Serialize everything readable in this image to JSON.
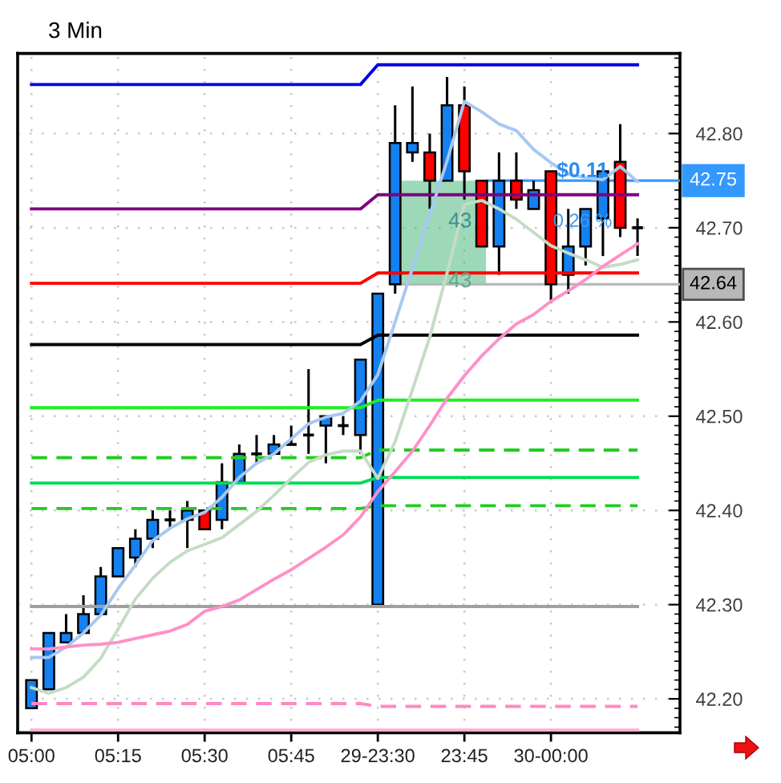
{
  "chart_data": {
    "type": "candlestick",
    "title": "3 Min",
    "categories": [
      "05:00",
      null,
      null,
      null,
      null,
      "05:15",
      null,
      null,
      null,
      null,
      "05:30",
      null,
      null,
      null,
      null,
      "05:45",
      null,
      null,
      null,
      null,
      "29-23:30",
      null,
      null,
      null,
      null,
      "23:45",
      null,
      null,
      null,
      null,
      "30-00:00",
      null,
      null,
      null,
      null,
      null
    ],
    "ohlc": [
      [
        42.19,
        42.22,
        42.19,
        42.22
      ],
      [
        42.21,
        42.27,
        42.21,
        42.27
      ],
      [
        42.26,
        42.29,
        42.26,
        42.27
      ],
      [
        42.27,
        42.31,
        42.27,
        42.29
      ],
      [
        42.29,
        42.34,
        42.29,
        42.33
      ],
      [
        42.33,
        42.36,
        42.33,
        42.36
      ],
      [
        42.35,
        42.38,
        42.34,
        42.37
      ],
      [
        42.37,
        42.4,
        42.36,
        42.39
      ],
      [
        42.39,
        42.4,
        42.38,
        42.39
      ],
      [
        42.39,
        42.41,
        42.36,
        42.4
      ],
      [
        42.4,
        42.4,
        42.38,
        42.38
      ],
      [
        42.39,
        42.45,
        42.38,
        42.43
      ],
      [
        42.43,
        42.47,
        42.43,
        42.46
      ],
      [
        42.46,
        42.48,
        42.45,
        42.46
      ],
      [
        42.46,
        42.48,
        42.46,
        42.47
      ],
      [
        42.47,
        42.49,
        42.47,
        42.47
      ],
      [
        42.48,
        42.55,
        42.46,
        42.48
      ],
      [
        42.49,
        42.5,
        42.45,
        42.5
      ],
      [
        42.49,
        42.5,
        42.48,
        42.49
      ],
      [
        42.48,
        42.56,
        42.46,
        42.56
      ],
      [
        42.3,
        42.63,
        42.3,
        42.63
      ],
      [
        42.64,
        42.83,
        42.63,
        42.79
      ],
      [
        42.78,
        42.85,
        42.77,
        42.79
      ],
      [
        42.78,
        42.8,
        42.72,
        42.75
      ],
      [
        42.75,
        42.86,
        42.75,
        42.83
      ],
      [
        42.83,
        42.85,
        42.73,
        42.76
      ],
      [
        42.75,
        42.75,
        42.68,
        42.68
      ],
      [
        42.68,
        42.78,
        42.65,
        42.75
      ],
      [
        42.75,
        42.78,
        42.72,
        42.73
      ],
      [
        42.72,
        42.75,
        42.72,
        42.74
      ],
      [
        42.76,
        42.76,
        42.62,
        42.64
      ],
      [
        42.65,
        42.72,
        42.63,
        42.68
      ],
      [
        42.68,
        42.72,
        42.66,
        42.72
      ],
      [
        42.71,
        42.76,
        42.67,
        42.76
      ],
      [
        42.77,
        42.81,
        42.69,
        42.7
      ],
      [
        42.7,
        42.71,
        42.67,
        42.7
      ]
    ],
    "colors": [
      "#1580f0",
      "#1580f0",
      "#1580f0",
      "#1580f0",
      "#1580f0",
      "#1580f0",
      "#1580f0",
      "#1580f0",
      "#000000",
      "#1580f0",
      "#ff0000",
      "#1580f0",
      "#1580f0",
      "#000000",
      "#1580f0",
      "#000000",
      "#000000",
      "#1580f0",
      "#000000",
      "#1580f0",
      "#1580f0",
      "#1580f0",
      "#1580f0",
      "#ff0000",
      "#1580f0",
      "#ff0000",
      "#ff0000",
      "#1580f0",
      "#ff0000",
      "#1580f0",
      "#ff0000",
      "#1580f0",
      "#1580f0",
      "#1580f0",
      "#ff0000",
      "#000000"
    ],
    "series": [
      {
        "type": "line",
        "color": "#0000e6",
        "values": [
          42.852,
          42.852,
          42.852,
          42.852,
          42.852,
          42.852,
          42.852,
          42.852,
          42.852,
          42.852,
          42.852,
          42.852,
          42.852,
          42.852,
          42.852,
          42.852,
          42.852,
          42.852,
          42.852,
          42.852,
          42.873,
          42.873,
          42.873,
          42.873,
          42.873,
          42.873,
          42.873,
          42.873,
          42.873,
          42.873,
          42.873,
          42.873,
          42.873,
          42.873,
          42.873,
          42.873
        ]
      },
      {
        "type": "line",
        "color": "#800080",
        "values": [
          42.72,
          42.72,
          42.72,
          42.72,
          42.72,
          42.72,
          42.72,
          42.72,
          42.72,
          42.72,
          42.72,
          42.72,
          42.72,
          42.72,
          42.72,
          42.72,
          42.72,
          42.72,
          42.72,
          42.72,
          42.735,
          42.735,
          42.735,
          42.735,
          42.735,
          42.735,
          42.735,
          42.735,
          42.735,
          42.735,
          42.735,
          42.735,
          42.735,
          42.735,
          42.735,
          42.735
        ]
      },
      {
        "type": "line",
        "color": "#ff0000",
        "values": [
          42.641,
          42.641,
          42.641,
          42.641,
          42.641,
          42.641,
          42.641,
          42.641,
          42.641,
          42.641,
          42.641,
          42.641,
          42.641,
          42.641,
          42.641,
          42.641,
          42.641,
          42.641,
          42.641,
          42.641,
          42.652,
          42.652,
          42.652,
          42.652,
          42.652,
          42.652,
          42.652,
          42.652,
          42.652,
          42.652,
          42.652,
          42.652,
          42.652,
          42.652,
          42.652,
          42.652
        ]
      },
      {
        "type": "line",
        "color": "#000000",
        "values": [
          42.576,
          42.576,
          42.576,
          42.576,
          42.576,
          42.576,
          42.576,
          42.576,
          42.576,
          42.576,
          42.576,
          42.576,
          42.576,
          42.576,
          42.576,
          42.576,
          42.576,
          42.576,
          42.576,
          42.576,
          42.586,
          42.586,
          42.586,
          42.586,
          42.586,
          42.586,
          42.586,
          42.586,
          42.586,
          42.586,
          42.586,
          42.586,
          42.586,
          42.586,
          42.586,
          42.586
        ]
      },
      {
        "type": "line",
        "color": "#22ee22",
        "values": [
          42.509,
          42.509,
          42.509,
          42.509,
          42.509,
          42.509,
          42.509,
          42.509,
          42.509,
          42.509,
          42.509,
          42.509,
          42.509,
          42.509,
          42.509,
          42.509,
          42.509,
          42.509,
          42.509,
          42.509,
          42.517,
          42.517,
          42.517,
          42.517,
          42.517,
          42.517,
          42.517,
          42.517,
          42.517,
          42.517,
          42.517,
          42.517,
          42.517,
          42.517,
          42.517,
          42.517
        ]
      },
      {
        "type": "line",
        "color": "#22cc22",
        "line_style": "dashed",
        "values": [
          42.456,
          42.456,
          42.456,
          42.456,
          42.456,
          42.456,
          42.456,
          42.456,
          42.456,
          42.456,
          42.456,
          42.456,
          42.456,
          42.456,
          42.456,
          42.456,
          42.456,
          42.456,
          42.456,
          42.456,
          42.464,
          42.464,
          42.464,
          42.464,
          42.464,
          42.464,
          42.464,
          42.464,
          42.464,
          42.464,
          42.464,
          42.464,
          42.464,
          42.464,
          42.464,
          42.464
        ]
      },
      {
        "type": "line",
        "color": "#00dd55",
        "values": [
          42.429,
          42.429,
          42.429,
          42.429,
          42.429,
          42.429,
          42.429,
          42.429,
          42.429,
          42.429,
          42.429,
          42.429,
          42.429,
          42.429,
          42.429,
          42.429,
          42.429,
          42.429,
          42.429,
          42.429,
          42.435,
          42.435,
          42.435,
          42.435,
          42.435,
          42.435,
          42.435,
          42.435,
          42.435,
          42.435,
          42.435,
          42.435,
          42.435,
          42.435,
          42.435,
          42.435
        ]
      },
      {
        "type": "line",
        "color": "#22cc22",
        "line_style": "dashed",
        "values": [
          42.402,
          42.402,
          42.402,
          42.402,
          42.402,
          42.402,
          42.402,
          42.402,
          42.402,
          42.402,
          42.402,
          42.402,
          42.402,
          42.402,
          42.402,
          42.402,
          42.402,
          42.402,
          42.402,
          42.402,
          42.405,
          42.405,
          42.405,
          42.405,
          42.405,
          42.405,
          42.405,
          42.405,
          42.405,
          42.405,
          42.405,
          42.405,
          42.405,
          42.405,
          42.405,
          42.405
        ]
      },
      {
        "type": "line",
        "color": "#a0a0a0",
        "values": [
          42.298,
          42.298,
          42.298,
          42.298,
          42.298,
          42.298,
          42.298,
          42.298,
          42.298,
          42.298,
          42.298,
          42.298,
          42.298,
          42.298,
          42.298,
          42.298,
          42.298,
          42.298,
          42.298,
          42.298,
          42.298,
          42.298,
          42.298,
          42.298,
          42.298,
          42.298,
          42.298,
          42.298,
          42.298,
          42.298,
          42.298,
          42.298,
          42.298,
          42.298,
          42.298,
          42.298
        ]
      },
      {
        "type": "line",
        "color": "#ff88c4",
        "line_style": "dashed",
        "values": [
          42.195,
          42.195,
          42.195,
          42.195,
          42.195,
          42.195,
          42.195,
          42.195,
          42.195,
          42.195,
          42.195,
          42.195,
          42.195,
          42.195,
          42.195,
          42.195,
          42.195,
          42.195,
          42.195,
          42.195,
          42.192,
          42.192,
          42.192,
          42.192,
          42.192,
          42.192,
          42.192,
          42.192,
          42.192,
          42.192,
          42.192,
          42.192,
          42.192,
          42.192,
          42.192,
          42.192
        ]
      },
      {
        "type": "line",
        "color": "#ffb0d8",
        "values": [
          42.167,
          42.167,
          42.167,
          42.167,
          42.167,
          42.167,
          42.167,
          42.167,
          42.167,
          42.167,
          42.167,
          42.167,
          42.167,
          42.167,
          42.167,
          42.167,
          42.167,
          42.167,
          42.167,
          42.167,
          42.167,
          42.167,
          42.167,
          42.167,
          42.167,
          42.167,
          42.167,
          42.167,
          42.167,
          42.167,
          42.167,
          42.167,
          42.167,
          42.167,
          42.167,
          42.167
        ]
      },
      {
        "type": "line",
        "color": "#a8c8f0",
        "values": [
          42.244,
          42.244,
          42.255,
          42.27,
          42.289,
          42.317,
          42.342,
          42.368,
          42.381,
          42.391,
          42.398,
          42.414,
          42.435,
          42.45,
          42.46,
          42.476,
          42.492,
          42.499,
          42.503,
          42.516,
          42.544,
          42.6,
          42.657,
          42.714,
          42.771,
          42.834,
          42.823,
          42.81,
          42.803,
          42.783,
          42.769,
          42.757,
          42.753,
          42.751,
          42.765,
          42.749
        ]
      },
      {
        "type": "line",
        "color": "#c4dcc4",
        "values": [
          42.212,
          42.206,
          42.212,
          42.223,
          42.243,
          42.274,
          42.306,
          42.328,
          42.345,
          42.357,
          42.364,
          42.371,
          42.385,
          42.399,
          42.416,
          42.434,
          42.451,
          42.459,
          42.463,
          42.463,
          42.434,
          42.473,
          42.528,
          42.584,
          42.652,
          42.725,
          42.729,
          42.72,
          42.709,
          42.695,
          42.681,
          42.673,
          42.666,
          42.658,
          42.661,
          42.666
        ]
      },
      {
        "type": "line",
        "color": "#ff90c8",
        "values": [
          42.253,
          42.253,
          42.255,
          42.257,
          42.258,
          42.26,
          42.264,
          42.268,
          42.272,
          42.279,
          42.293,
          42.298,
          42.305,
          42.316,
          42.327,
          42.337,
          42.349,
          42.361,
          42.374,
          42.393,
          42.42,
          42.441,
          42.463,
          42.49,
          42.519,
          42.543,
          42.564,
          42.582,
          42.598,
          42.608,
          42.622,
          42.633,
          42.645,
          42.659,
          42.671,
          42.683
        ]
      }
    ],
    "ylim": [
      42.164,
      42.885
    ],
    "yticks": [
      {
        "value": 42.2,
        "label": "42.20"
      },
      {
        "value": 42.3,
        "label": "42.30"
      },
      {
        "value": 42.4,
        "label": "42.40"
      },
      {
        "value": 42.5,
        "label": "42.50"
      },
      {
        "value": 42.6,
        "label": "42.60"
      },
      {
        "value": 42.7,
        "label": "42.70"
      },
      {
        "value": 42.8,
        "label": "42.80"
      }
    ],
    "grid": true,
    "ref_lines": [
      {
        "axis": "y",
        "value": 42.75,
        "label": "42.75",
        "color": "#3399ff"
      },
      {
        "axis": "y",
        "value": 42.64,
        "label": "42.64",
        "color": "#b8b8b8"
      }
    ],
    "annotations": [
      "$0.11",
      "0.26 %",
      "43",
      "43"
    ]
  }
}
